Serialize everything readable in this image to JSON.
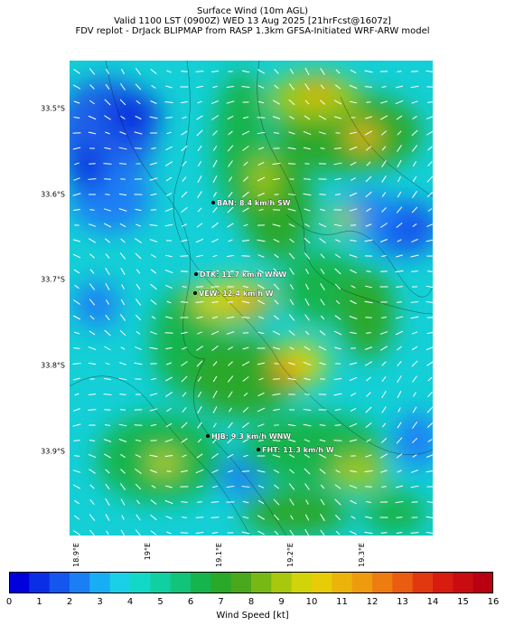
{
  "header": {
    "title": "Surface Wind (10m AGL)",
    "valid": "Valid 1100 LST (0900Z) WED 13 Aug 2025 [21hrFcst@1607z]",
    "model": "FDV replot - DrJack BLIPMAP from RASP 1.3km GFSA-Initiated WRF-ARW model"
  },
  "map": {
    "lat_labels": [
      "33.5°S",
      "33.6°S",
      "33.7°S",
      "33.8°S",
      "33.9°S"
    ],
    "lon_labels": [
      "18.9°E",
      "19°E",
      "19.1°E",
      "19.2°E",
      "19.3°E"
    ],
    "stations": [
      {
        "id": "BAN",
        "label": "BAN: 8.4 km/h SW"
      },
      {
        "id": "DTK",
        "label": "DTK: 11.7 km/h WNW"
      },
      {
        "id": "VEW",
        "label": "VEW: 12.4 km/h W"
      },
      {
        "id": "HJB",
        "label": "HJB: 9.3 km/h WNW"
      },
      {
        "id": "FHT",
        "label": "FHT: 11.3 km/h W"
      }
    ]
  },
  "colorbar": {
    "label": "Wind Speed [kt]",
    "ticks": [
      "0",
      "1",
      "2",
      "3",
      "4",
      "5",
      "6",
      "7",
      "8",
      "9",
      "10",
      "11",
      "12",
      "13",
      "14",
      "15",
      "16"
    ],
    "colors": [
      "#0000dd",
      "#0a2ee6",
      "#1456ee",
      "#1a7ff5",
      "#18aef5",
      "#1ad0e8",
      "#12d8c8",
      "#10cfa0",
      "#12c37a",
      "#16b44c",
      "#2aa82a",
      "#4aa81c",
      "#78b814",
      "#a8c80e",
      "#d2d40a",
      "#e8cc08",
      "#ecb40a",
      "#ee9c0e",
      "#ee7c10",
      "#ea5c10",
      "#e23810",
      "#d81c10",
      "#c80c10",
      "#b80010"
    ]
  }
}
